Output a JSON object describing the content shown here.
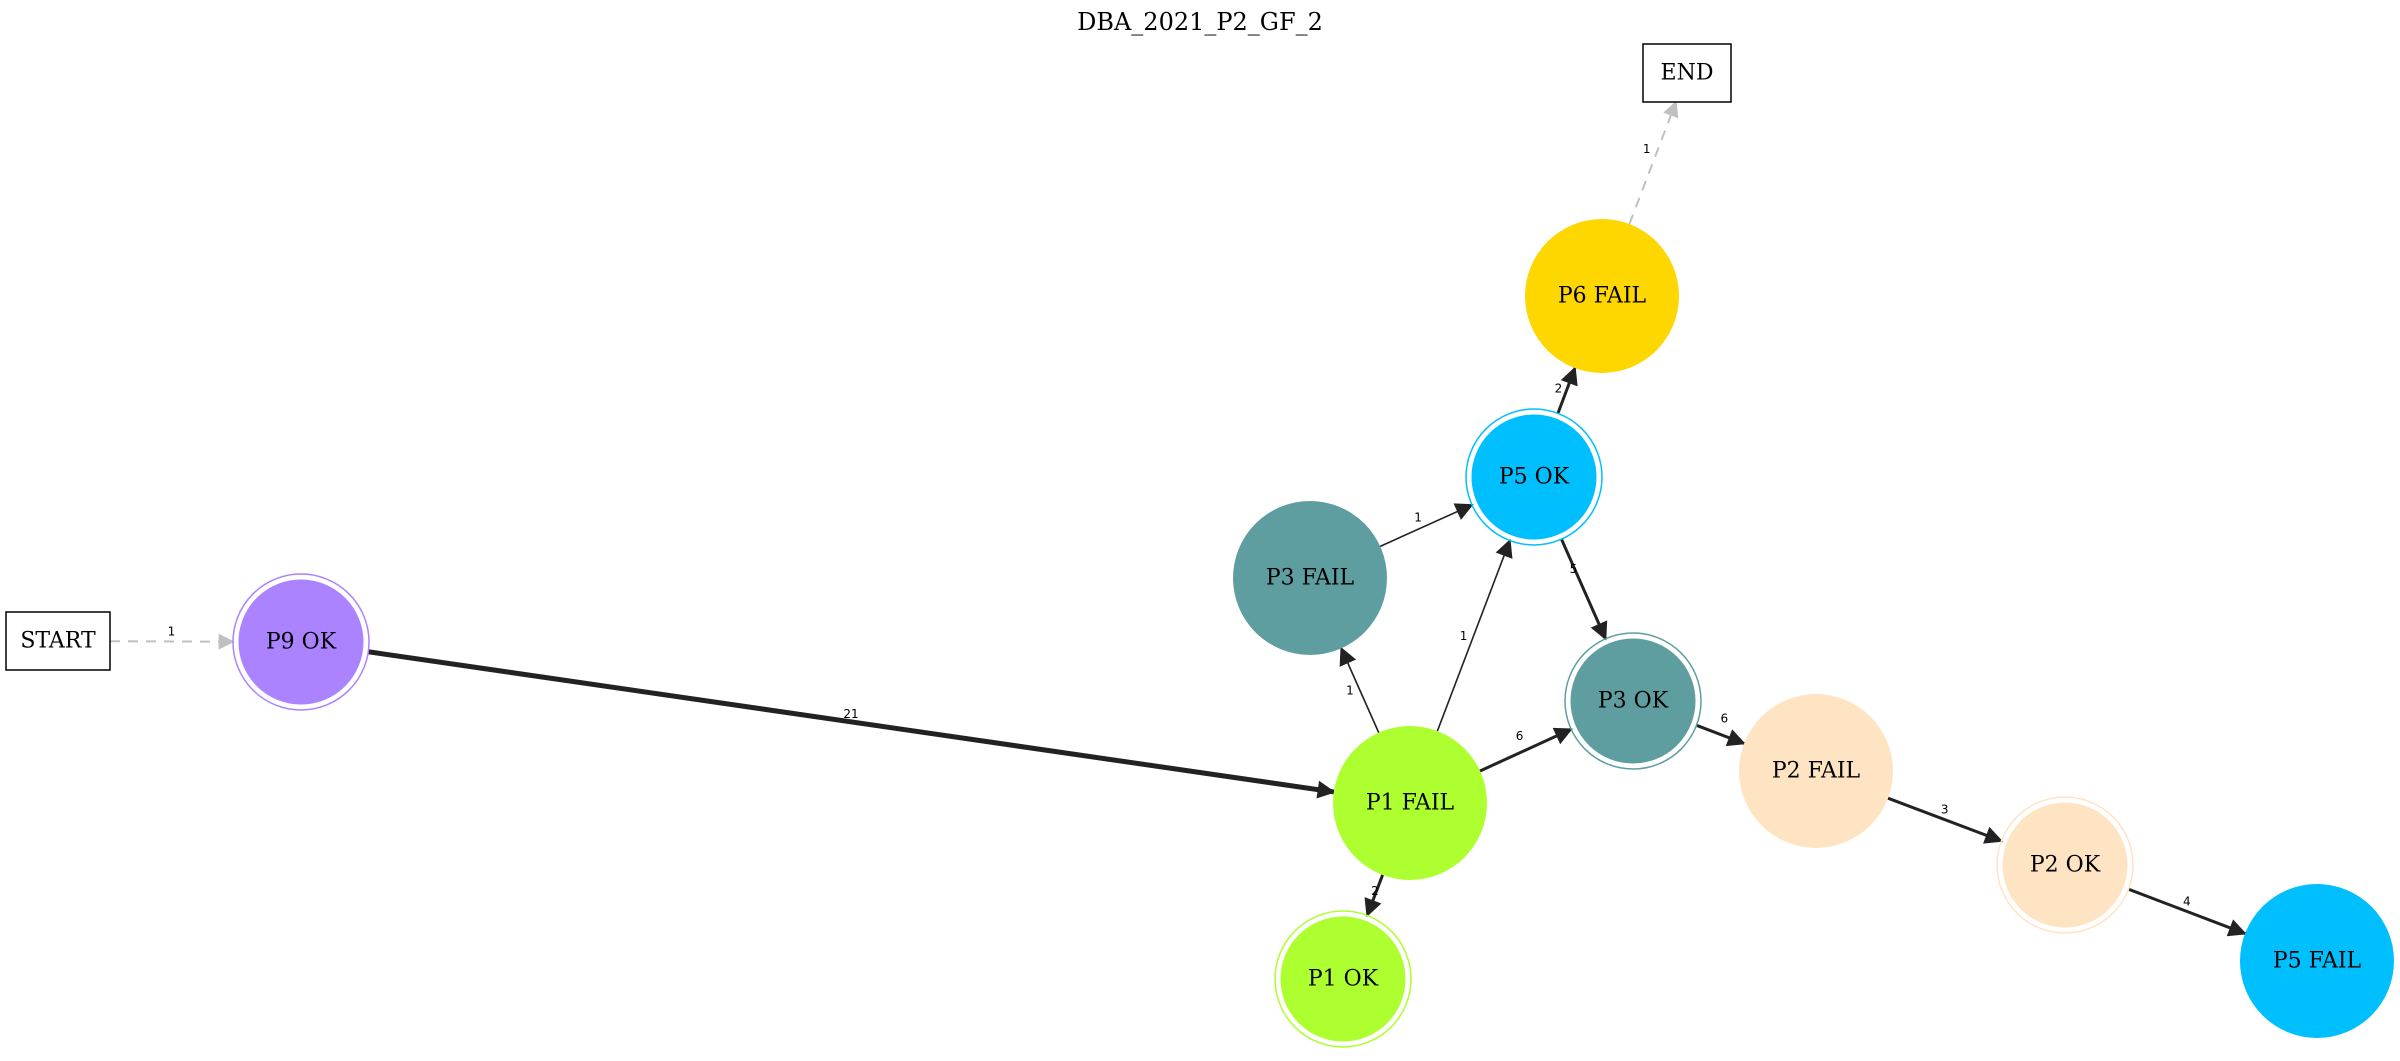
{
  "title": "DBA_2021_P2_GF_2",
  "nodes": [
    {
      "id": "start",
      "label": "START",
      "shape": "box"
    },
    {
      "id": "end",
      "label": "END",
      "shape": "box"
    },
    {
      "id": "p9ok",
      "label": "P9 OK",
      "shape": "doublecircle",
      "color": "#ab82ff"
    },
    {
      "id": "p1fail",
      "label": "P1 FAIL",
      "shape": "circle",
      "color": "#adff2f"
    },
    {
      "id": "p1ok",
      "label": "P1 OK",
      "shape": "doublecircle",
      "color": "#adff2f"
    },
    {
      "id": "p3fail",
      "label": "P3 FAIL",
      "shape": "circle",
      "color": "#5f9ea0"
    },
    {
      "id": "p5ok",
      "label": "P5 OK",
      "shape": "doublecircle",
      "color": "#00bfff"
    },
    {
      "id": "p6fail",
      "label": "P6 FAIL",
      "shape": "circle",
      "color": "#ffd700"
    },
    {
      "id": "p3ok",
      "label": "P3 OK",
      "shape": "doublecircle",
      "color": "#5f9ea0"
    },
    {
      "id": "p2fail",
      "label": "P2 FAIL",
      "shape": "circle",
      "color": "#ffe4c4"
    },
    {
      "id": "p2ok",
      "label": "P2 OK",
      "shape": "doublecircle",
      "color": "#ffe4c4"
    },
    {
      "id": "p5fail",
      "label": "P5 FAIL",
      "shape": "circle",
      "color": "#00bfff"
    }
  ],
  "edges": [
    {
      "from": "start",
      "to": "p9ok",
      "label": "1",
      "style": "dashed"
    },
    {
      "from": "p9ok",
      "to": "p1fail",
      "label": "21",
      "style": "bold"
    },
    {
      "from": "p1fail",
      "to": "p3fail",
      "label": "1",
      "style": "solid"
    },
    {
      "from": "p1fail",
      "to": "p5ok",
      "label": "1",
      "style": "solid"
    },
    {
      "from": "p1fail",
      "to": "p3ok",
      "label": "6",
      "style": "solid"
    },
    {
      "from": "p1fail",
      "to": "p1ok",
      "label": "2",
      "style": "solid"
    },
    {
      "from": "p3fail",
      "to": "p5ok",
      "label": "1",
      "style": "solid"
    },
    {
      "from": "p5ok",
      "to": "p6fail",
      "label": "2",
      "style": "solid"
    },
    {
      "from": "p5ok",
      "to": "p3ok",
      "label": "5",
      "style": "solid"
    },
    {
      "from": "p6fail",
      "to": "end",
      "label": "1",
      "style": "dashed"
    },
    {
      "from": "p3ok",
      "to": "p2fail",
      "label": "6",
      "style": "solid"
    },
    {
      "from": "p2fail",
      "to": "p2ok",
      "label": "3",
      "style": "solid"
    },
    {
      "from": "p2ok",
      "to": "p5fail",
      "label": "4",
      "style": "solid"
    }
  ]
}
